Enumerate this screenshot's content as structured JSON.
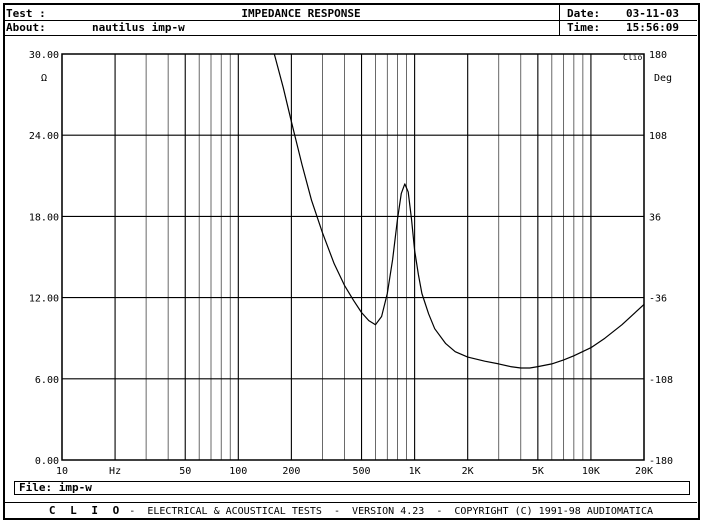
{
  "header": {
    "test_label": "Test :",
    "title": "IMPEDANCE RESPONSE",
    "date_label": "Date:",
    "date_value": "03-11-03",
    "about_label": "About:",
    "about_value": "nautilus imp-w",
    "time_label": "Time:",
    "time_value": "15:56:09"
  },
  "chart_data": {
    "type": "line",
    "title": "IMPEDANCE RESPONSE",
    "x_scale": "log",
    "xlim": [
      10,
      20000
    ],
    "x_ticks": [
      10,
      50,
      100,
      200,
      500,
      1000,
      2000,
      5000,
      10000,
      20000
    ],
    "x_tick_labels": [
      "10",
      "50",
      "100",
      "200",
      "500",
      "1K",
      "2K",
      "5K",
      "10K",
      "20K"
    ],
    "x_unit": "Hz",
    "ylim": [
      0,
      30
    ],
    "y_ticks": [
      0,
      6,
      12,
      18,
      24,
      30
    ],
    "y_tick_labels": [
      "0.00",
      "6.00",
      "12.00",
      "18.00",
      "24.00",
      "30.00"
    ],
    "y_unit": "Ω",
    "y2lim": [
      -180,
      180
    ],
    "y2_ticks": [
      -180,
      -108,
      -36,
      36,
      108,
      180
    ],
    "y2_tick_labels": [
      "-180",
      "-108",
      "-36",
      "36",
      "108",
      "180"
    ],
    "y2_unit": "Deg",
    "grid": true,
    "series": [
      {
        "x": [
          160,
          180,
          200,
          230,
          260,
          300,
          350,
          400,
          450,
          500,
          550,
          600,
          650,
          700,
          750,
          800,
          840,
          880,
          920,
          960,
          1000,
          1050,
          1100,
          1200,
          1300,
          1500,
          1700,
          2000,
          2500,
          3000,
          3500,
          4000,
          4500,
          5000,
          6000,
          7000,
          8000,
          10000,
          12000,
          15000,
          20000
        ],
        "y": [
          30.0,
          27.5,
          25.0,
          21.8,
          19.2,
          16.8,
          14.5,
          12.9,
          11.8,
          10.9,
          10.3,
          10.0,
          10.6,
          12.3,
          14.8,
          17.8,
          19.7,
          20.4,
          19.8,
          17.8,
          15.5,
          13.7,
          12.3,
          10.8,
          9.7,
          8.6,
          8.0,
          7.6,
          7.3,
          7.1,
          6.9,
          6.8,
          6.8,
          6.9,
          7.1,
          7.4,
          7.7,
          8.3,
          9.0,
          10.0,
          11.5
        ]
      }
    ]
  },
  "badge": "Clio",
  "footer": {
    "file_text": "File: imp-w",
    "brand": "C L I O",
    "info": " -  ELECTRICAL & ACOUSTICAL TESTS  -  VERSION 4.23  -  COPYRIGHT (C) 1991-98 AUDIOMATICA"
  }
}
